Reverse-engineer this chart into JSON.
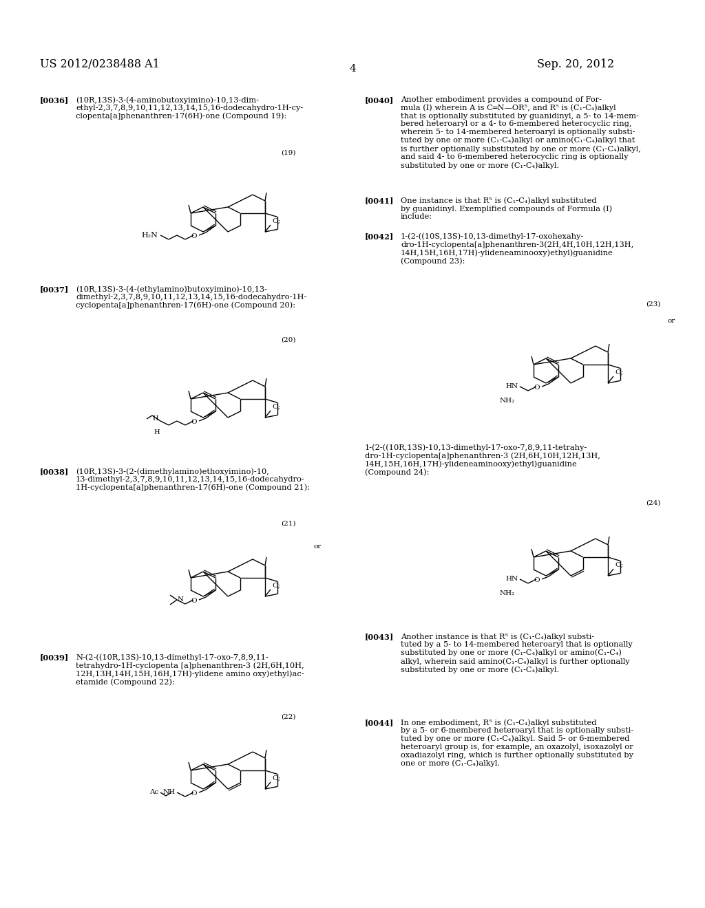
{
  "patent_number": "US 2012/0238488 A1",
  "date": "Sep. 20, 2012",
  "page_number": "4",
  "background_color": "#ffffff",
  "figsize": [
    10.24,
    13.2
  ],
  "dpi": 100
}
